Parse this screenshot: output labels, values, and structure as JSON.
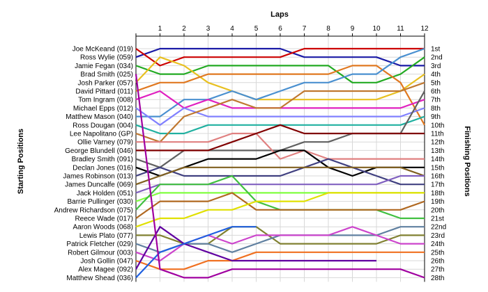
{
  "chart_data": {
    "type": "line",
    "title": "Laps",
    "ylabel_left": "Starting Positions",
    "ylabel_right": "Finishing Positions",
    "x": [
      0,
      1,
      2,
      3,
      4,
      5,
      6,
      7,
      8,
      9,
      10,
      11,
      12
    ],
    "x_tick_labels": [
      "1",
      "2",
      "3",
      "4",
      "5",
      "6",
      "7",
      "8",
      "9",
      "10",
      "11",
      "12"
    ],
    "y_axis_reversed": true,
    "ylim": [
      1,
      28
    ],
    "grid": true,
    "starting_labels": [
      "Joe McKeand (019)",
      "Ross Wylie (059)",
      "Jamie Fegan (034)",
      "Brad Smith (025)",
      "Josh Parker (057)",
      "David Pittard (011)",
      "Tom Ingram (008)",
      "Michael Epps (012)",
      "Matthew Mason (040)",
      "Ross Dougan (004)",
      "Lee Napolitano (GP)",
      "Ollie Varney (079)",
      "George Blundell (046)",
      "Bradley Smith (091)",
      "Declan Jones (016)",
      "James Robinson (013)",
      "James Duncalfe (069)",
      "Jack Holden (051)",
      "Barrie Pullinger (030)",
      "Andrew Richardson (075)",
      "Reece Wade (017)",
      "Aaron Woods (068)",
      "Lewis Plato (077)",
      "Patrick Fletcher (029)",
      "Robert Gilmour (003)",
      "Josh Gollin (047)",
      "Alex Magee (092)",
      "Matthew Shead (036)"
    ],
    "finishing_labels": [
      "1st",
      "2nd",
      "3rd",
      "4th",
      "5th",
      "6th",
      "7th",
      "8th",
      "9th",
      "10th",
      "11th",
      "12th",
      "13th",
      "14th",
      "15th",
      "16th",
      "17th",
      "18th",
      "19th",
      "20th",
      "21st",
      "22nd",
      "23rd",
      "24th",
      "25th",
      "26th",
      "27th",
      "28th"
    ],
    "series": [
      {
        "color": "#1a1aa6",
        "values": [
          2,
          1,
          1,
          1,
          1,
          1,
          1,
          2,
          2,
          2,
          2,
          3,
          3
        ]
      },
      {
        "color": "#cc0000",
        "values": [
          1,
          3,
          2,
          2,
          2,
          2,
          2,
          1,
          1,
          1,
          1,
          1,
          1
        ]
      },
      {
        "color": "#22aa22",
        "values": [
          3,
          4,
          4,
          3,
          3,
          3,
          3,
          3,
          3,
          5,
          5,
          4,
          2
        ]
      },
      {
        "color": "#e8c020",
        "values": [
          5,
          2,
          3,
          5,
          6,
          7,
          7,
          7,
          7,
          7,
          7,
          6,
          4
        ]
      },
      {
        "color": "#e07820",
        "values": [
          6,
          5,
          5,
          4,
          4,
          4,
          4,
          4,
          4,
          3,
          3,
          5,
          10
        ]
      },
      {
        "color": "#4a90d0",
        "values": [
          9,
          9,
          7,
          7,
          6,
          7,
          6,
          5,
          5,
          4,
          4,
          2,
          1
        ]
      },
      {
        "color": "#e020c0",
        "values": [
          7,
          6,
          8,
          7,
          8,
          8,
          8,
          8,
          8,
          8,
          8,
          8,
          7
        ]
      },
      {
        "color": "#8080ff",
        "values": [
          8,
          10,
          8,
          9,
          9,
          9,
          9,
          9,
          9,
          9,
          9,
          9,
          8
        ]
      },
      {
        "color": "#20b0a0",
        "values": [
          10,
          11,
          11,
          10,
          10,
          10,
          10,
          10,
          10,
          10,
          10,
          10,
          9
        ]
      },
      {
        "color": "#c07830",
        "values": [
          11,
          12,
          9,
          8,
          7,
          8,
          8,
          6,
          6,
          6,
          6,
          6,
          5
        ]
      },
      {
        "color": "#606060",
        "values": [
          14,
          15,
          13,
          13,
          13,
          13,
          13,
          12,
          12,
          11,
          11,
          11,
          6
        ]
      },
      {
        "color": "#e08080",
        "values": [
          12,
          12,
          12,
          12,
          11,
          11,
          14,
          13,
          14,
          14,
          14,
          14,
          14
        ]
      },
      {
        "color": "#800000",
        "values": [
          13,
          13,
          13,
          13,
          12,
          11,
          10,
          11,
          11,
          11,
          11,
          11,
          11
        ]
      },
      {
        "color": "#000000",
        "values": [
          15,
          16,
          15,
          14,
          14,
          14,
          13,
          13,
          15,
          16,
          15,
          15,
          15
        ]
      },
      {
        "color": "#404080",
        "values": [
          16,
          15,
          16,
          16,
          16,
          16,
          16,
          15,
          14,
          15,
          16,
          17,
          17
        ]
      },
      {
        "color": "#806020",
        "values": [
          17,
          16,
          15,
          15,
          15,
          15,
          15,
          15,
          15,
          15,
          15,
          15,
          16
        ]
      },
      {
        "color": "#8060c0",
        "values": [
          18,
          17,
          17,
          17,
          17,
          17,
          17,
          17,
          17,
          17,
          17,
          16,
          16
        ]
      },
      {
        "color": "#80ff40",
        "values": [
          19,
          18,
          18,
          18,
          18,
          18,
          18,
          18,
          18,
          18,
          18,
          18,
          18
        ]
      },
      {
        "color": "#40c040",
        "values": [
          20,
          17,
          17,
          17,
          16,
          19,
          20,
          20,
          20,
          20,
          20,
          21,
          21
        ]
      },
      {
        "color": "#b06820",
        "values": [
          21,
          19,
          19,
          19,
          18,
          20,
          20,
          20,
          20,
          20,
          20,
          20,
          19
        ]
      },
      {
        "color": "#e0e000",
        "values": [
          22,
          21,
          21,
          20,
          20,
          19,
          19,
          19,
          18,
          18,
          18,
          18,
          18
        ]
      },
      {
        "color": "#808030",
        "values": [
          23,
          23,
          24,
          24,
          22,
          22,
          24,
          24,
          24,
          24,
          24,
          23,
          23
        ]
      },
      {
        "color": "#6080a0",
        "values": [
          24,
          25,
          24,
          24,
          25,
          24,
          23,
          23,
          23,
          23,
          23,
          22,
          22
        ]
      },
      {
        "color": "#cc44cc",
        "values": [
          25,
          26,
          24,
          23,
          24,
          23,
          23,
          23,
          23,
          22,
          23,
          24,
          24
        ]
      },
      {
        "color": "#f07020",
        "values": [
          26,
          27,
          27,
          26,
          26,
          25,
          25,
          25,
          25,
          25,
          25,
          25,
          25
        ]
      },
      {
        "color": "#6000a0",
        "values": [
          27,
          22,
          24,
          25,
          26,
          26,
          26,
          26,
          26,
          26,
          26,
          null,
          null
        ]
      },
      {
        "color": "#2060e0",
        "values": [
          28,
          25,
          24,
          23,
          22,
          22,
          null,
          null,
          null,
          null,
          null,
          null,
          null
        ]
      },
      {
        "color": "#a000a0",
        "values": [
          4,
          27,
          28,
          28,
          27,
          27,
          27,
          27,
          27,
          27,
          27,
          27,
          28
        ]
      }
    ]
  }
}
